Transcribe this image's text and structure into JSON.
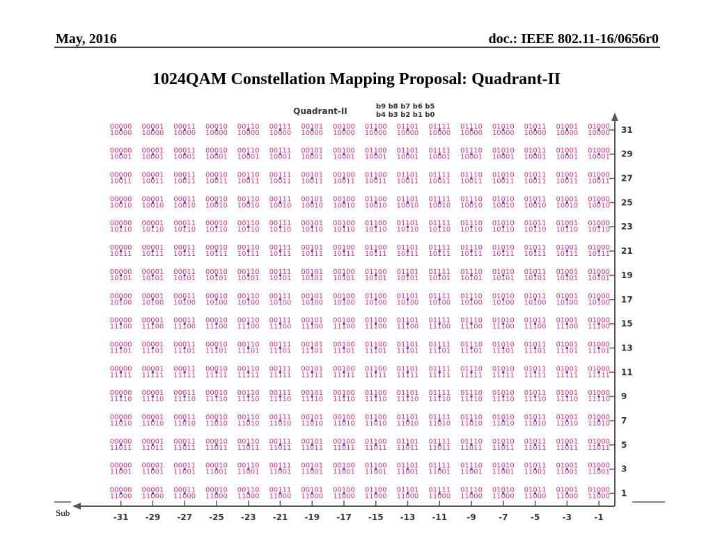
{
  "header": {
    "date": "May, 2016",
    "doc": "doc.: IEEE 802.11-16/0656r0"
  },
  "title": "1024QAM Constellation Mapping Proposal:  Quadrant-II",
  "footer": {
    "text": "Sub"
  },
  "chart_data": {
    "type": "constellation",
    "title": "Quadrant-II",
    "legend_top": "b9 b8 b7 b6 b5",
    "legend_bottom": "b4 b3 b2 b1 b0",
    "xlim": [
      -34,
      0
    ],
    "ylim": [
      0,
      33
    ],
    "xticks": [
      -31,
      -29,
      -27,
      -25,
      -23,
      -21,
      -19,
      -17,
      -15,
      -13,
      -11,
      -9,
      -7,
      -5,
      -3,
      -1
    ],
    "yticks": [
      1,
      3,
      5,
      7,
      9,
      11,
      13,
      15,
      17,
      19,
      21,
      23,
      25,
      27,
      29,
      31
    ],
    "column_bits": [
      "00000",
      "00001",
      "00011",
      "00010",
      "00110",
      "00111",
      "00101",
      "00100",
      "01100",
      "01101",
      "01111",
      "01110",
      "01010",
      "01011",
      "01001",
      "01000"
    ],
    "row_bits": [
      "11000",
      "11001",
      "11011",
      "11010",
      "11110",
      "11111",
      "11101",
      "11100",
      "10100",
      "10101",
      "10111",
      "10110",
      "10010",
      "10011",
      "10001",
      "10000"
    ],
    "top_color": "#e0287a",
    "bottom_color": "#c8388a",
    "point_color": "#2a3fc4"
  }
}
